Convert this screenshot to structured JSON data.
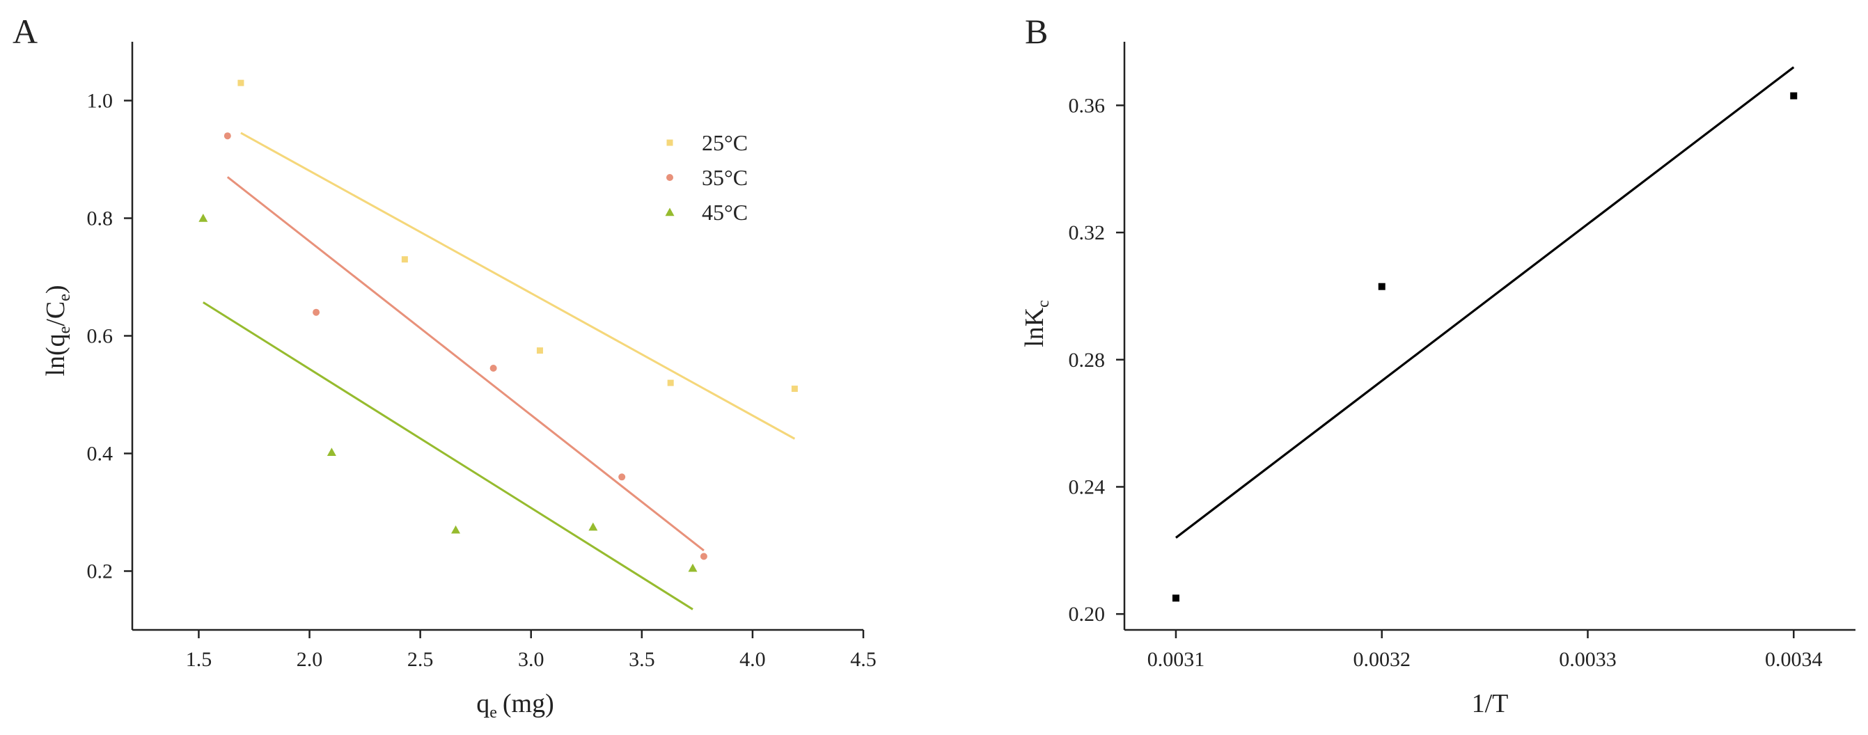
{
  "colors": {
    "25C": "#f5d77a",
    "35C": "#e8917a",
    "45C": "#96bb2e",
    "panelB": "#000000",
    "axis": "#222222"
  },
  "chart_data": [
    {
      "type": "scatter",
      "panel": "A",
      "xlabel": "q",
      "xlabel_sub": "e",
      "xlabel_unit": "(mg)",
      "ylabel": {
        "pre": "ln(q",
        "sub1": "e",
        "mid": "/C",
        "sub2": "e",
        "post": ")"
      },
      "xlim": [
        1.2,
        4.5
      ],
      "ylim": [
        0.1,
        1.1
      ],
      "xticks": [
        1.5,
        2.0,
        2.5,
        3.0,
        3.5,
        4.0,
        4.5
      ],
      "xtick_labels": [
        "1.5",
        "2.0",
        "2.5",
        "3.0",
        "3.5",
        "4.0",
        "4.5"
      ],
      "yticks": [
        0.2,
        0.4,
        0.6,
        0.8,
        1.0
      ],
      "ytick_labels": [
        "0.2",
        "0.4",
        "0.6",
        "0.8",
        "1.0"
      ],
      "legend_position": "top-right",
      "series": [
        {
          "name": "25°C",
          "color_key": "25C",
          "marker": "square",
          "points": [
            [
              1.69,
              1.03
            ],
            [
              2.43,
              0.73
            ],
            [
              3.04,
              0.575
            ],
            [
              3.63,
              0.52
            ],
            [
              4.19,
              0.51
            ]
          ],
          "fit": [
            [
              1.69,
              0.945
            ],
            [
              4.19,
              0.425
            ]
          ]
        },
        {
          "name": "35°C",
          "color_key": "35C",
          "marker": "circle",
          "points": [
            [
              1.63,
              0.94
            ],
            [
              2.03,
              0.64
            ],
            [
              2.83,
              0.545
            ],
            [
              3.41,
              0.36
            ],
            [
              3.78,
              0.225
            ]
          ],
          "fit": [
            [
              1.63,
              0.87
            ],
            [
              3.78,
              0.235
            ]
          ]
        },
        {
          "name": "45°C",
          "color_key": "45C",
          "marker": "triangle",
          "points": [
            [
              1.52,
              0.8
            ],
            [
              2.1,
              0.402
            ],
            [
              2.66,
              0.27
            ],
            [
              3.28,
              0.275
            ],
            [
              3.73,
              0.205
            ]
          ],
          "fit": [
            [
              1.52,
              0.657
            ],
            [
              3.73,
              0.135
            ]
          ]
        }
      ]
    },
    {
      "type": "scatter",
      "panel": "B",
      "xlabel": "1/T",
      "ylabel": {
        "pre": "lnK",
        "sub1": "c"
      },
      "xlim": [
        0.003075,
        0.00343
      ],
      "ylim": [
        0.195,
        0.38
      ],
      "xticks": [
        0.0031,
        0.0032,
        0.0033,
        0.0034
      ],
      "xtick_labels": [
        "0.0031",
        "0.0032",
        "0.0033",
        "0.0034"
      ],
      "yticks": [
        0.2,
        0.24,
        0.28,
        0.32,
        0.36
      ],
      "ytick_labels": [
        "0.20",
        "0.24",
        "0.28",
        "0.32",
        "0.36"
      ],
      "series": [
        {
          "name": "lnKc",
          "color_key": "panelB",
          "marker": "square",
          "points": [
            [
              0.0031,
              0.205
            ],
            [
              0.0032,
              0.303
            ],
            [
              0.0034,
              0.363
            ]
          ],
          "fit": [
            [
              0.0031,
              0.224
            ],
            [
              0.0034,
              0.372
            ]
          ]
        }
      ]
    }
  ]
}
